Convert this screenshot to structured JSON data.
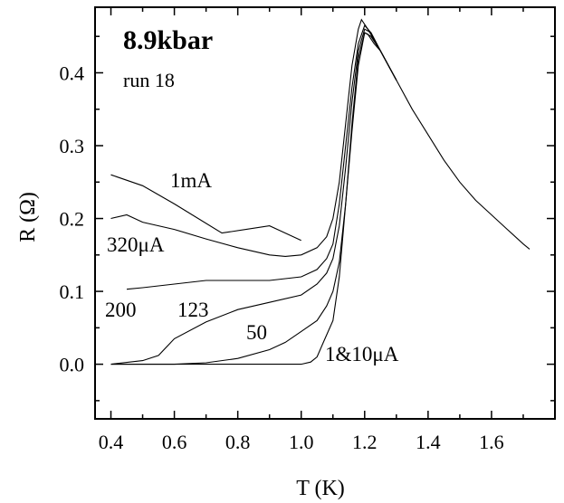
{
  "chart_data": {
    "type": "line",
    "title": "8.9kbar",
    "subtitle": "run 18",
    "xlabel": "T (K)",
    "ylabel": "R (Ω)",
    "xlim": [
      0.35,
      1.8
    ],
    "ylim": [
      -0.075,
      0.49
    ],
    "x_ticks": [
      0.4,
      0.6,
      0.8,
      1.0,
      1.2,
      1.4,
      1.6
    ],
    "x_tick_labels": [
      "0.4",
      "0.6",
      "0.8",
      "1.0",
      "1.2",
      "1.4",
      "1.6"
    ],
    "y_ticks": [
      0.0,
      0.1,
      0.2,
      0.3,
      0.4
    ],
    "y_tick_labels": [
      "0.0",
      "0.1",
      "0.2",
      "0.3",
      "0.4"
    ],
    "grid": false,
    "series": [
      {
        "name": "1mA",
        "x": [
          0.4,
          0.5,
          0.6,
          0.75,
          0.9,
          1.0
        ],
        "y": [
          0.26,
          0.245,
          0.22,
          0.18,
          0.19,
          0.17
        ]
      },
      {
        "name": "320μA",
        "x": [
          0.4,
          0.45,
          0.5,
          0.6,
          0.7,
          0.8,
          0.9,
          0.95,
          1.0,
          1.05,
          1.08,
          1.1,
          1.12,
          1.14,
          1.16,
          1.18,
          1.19,
          1.21,
          1.25,
          1.3,
          1.35,
          1.4,
          1.45,
          1.5,
          1.55,
          1.6,
          1.65,
          1.7,
          1.72
        ],
        "y": [
          0.2,
          0.205,
          0.195,
          0.185,
          0.172,
          0.16,
          0.15,
          0.148,
          0.15,
          0.16,
          0.175,
          0.2,
          0.25,
          0.33,
          0.41,
          0.46,
          0.473,
          0.46,
          0.43,
          0.39,
          0.35,
          0.315,
          0.28,
          0.25,
          0.225,
          0.205,
          0.185,
          0.165,
          0.158
        ]
      },
      {
        "name": "200",
        "x": [
          0.45,
          0.5,
          0.6,
          0.7,
          0.8,
          0.9,
          1.0,
          1.05,
          1.08,
          1.1,
          1.12,
          1.14,
          1.16,
          1.18,
          1.2,
          1.22,
          1.25,
          1.3
        ],
        "y": [
          0.103,
          0.105,
          0.11,
          0.115,
          0.115,
          0.115,
          0.12,
          0.13,
          0.145,
          0.165,
          0.22,
          0.3,
          0.38,
          0.44,
          0.465,
          0.455,
          0.43,
          0.39
        ]
      },
      {
        "name": "123",
        "x": [
          0.4,
          0.5,
          0.55,
          0.6,
          0.7,
          0.8,
          0.9,
          1.0,
          1.05,
          1.08,
          1.1,
          1.12,
          1.14,
          1.16,
          1.18,
          1.2,
          1.22,
          1.25,
          1.3
        ],
        "y": [
          0.0,
          0.005,
          0.012,
          0.035,
          0.058,
          0.075,
          0.085,
          0.095,
          0.11,
          0.125,
          0.145,
          0.19,
          0.27,
          0.36,
          0.43,
          0.46,
          0.455,
          0.43,
          0.39
        ]
      },
      {
        "name": "50",
        "x": [
          0.4,
          0.6,
          0.7,
          0.8,
          0.9,
          0.95,
          1.0,
          1.05,
          1.08,
          1.1,
          1.12,
          1.14,
          1.16,
          1.18,
          1.2,
          1.22,
          1.25,
          1.3
        ],
        "y": [
          0.0,
          0.0,
          0.002,
          0.008,
          0.02,
          0.03,
          0.045,
          0.06,
          0.08,
          0.1,
          0.14,
          0.22,
          0.32,
          0.41,
          0.455,
          0.45,
          0.43,
          0.39
        ]
      },
      {
        "name": "1&10μA",
        "x": [
          0.4,
          0.6,
          0.8,
          0.95,
          1.0,
          1.03,
          1.05,
          1.07,
          1.1,
          1.12,
          1.14,
          1.16,
          1.18,
          1.2,
          1.21,
          1.23,
          1.25,
          1.3
        ],
        "y": [
          0.0,
          0.0,
          0.0,
          0.0,
          0.0,
          0.003,
          0.01,
          0.03,
          0.06,
          0.12,
          0.22,
          0.33,
          0.42,
          0.455,
          0.453,
          0.44,
          0.43,
          0.39
        ]
      }
    ],
    "annotations": [
      "1mA",
      "320μA",
      "200",
      "123",
      "50",
      "1&10μA"
    ]
  }
}
